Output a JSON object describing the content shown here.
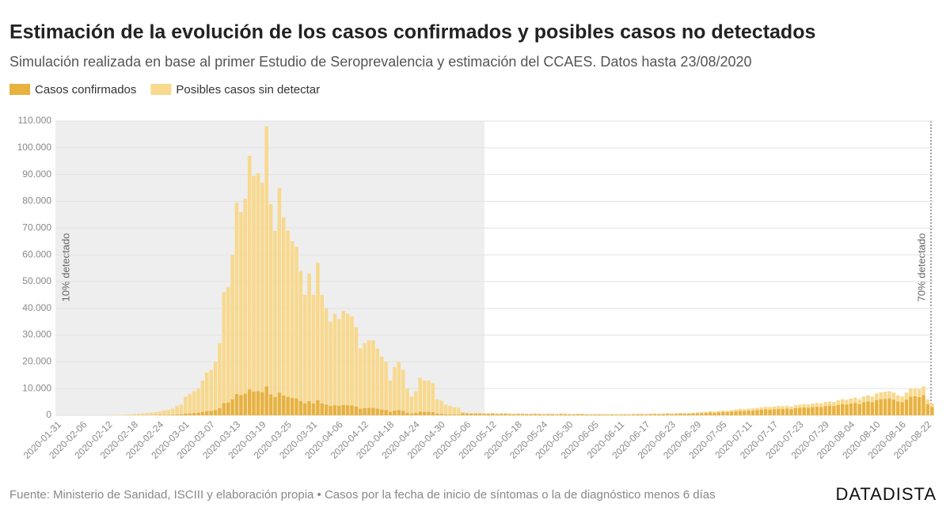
{
  "chart_data": {
    "type": "stacked-bar",
    "title": "Estimación de la evolución de los casos confirmados y posibles casos no detectados",
    "subtitle": "Simulación realizada en base al primer Estudio de Seroprevalencia y estimación del CCAES. Datos hasta 23/08/2020",
    "source": "Fuente: Ministerio de Sanidad, ISCIII y elaboración propia • Casos por la fecha de inicio de síntomas o la de diagnóstico menos 6 días",
    "brand": "DATADISTA",
    "annotations": [
      "10% detectado",
      "70% detectado"
    ],
    "ylim": [
      0,
      110000
    ],
    "yticks": [
      0,
      {
        "value": 10000,
        "label": "10.000"
      },
      {
        "value": 20000,
        "label": "20.000"
      },
      {
        "value": 30000,
        "label": "30.000"
      },
      {
        "value": 40000,
        "label": "40.000"
      },
      {
        "value": 50000,
        "label": "50.000"
      },
      {
        "value": 60000,
        "label": "60.000"
      },
      {
        "value": 70000,
        "label": "70.000"
      },
      {
        "value": 80000,
        "label": "80.000"
      },
      {
        "value": 90000,
        "label": "90.000"
      },
      {
        "value": 100000,
        "label": "100.000"
      },
      {
        "value": 110000,
        "label": "110.000"
      }
    ],
    "grid": true,
    "categories": [
      "2020-01-31",
      null,
      null,
      null,
      null,
      null,
      "2020-02-06",
      null,
      null,
      null,
      null,
      null,
      "2020-02-12",
      null,
      null,
      null,
      null,
      null,
      "2020-02-18",
      null,
      null,
      null,
      null,
      null,
      "2020-02-24",
      null,
      null,
      null,
      null,
      null,
      "2020-03-01",
      null,
      null,
      null,
      null,
      null,
      "2020-03-07",
      null,
      null,
      null,
      null,
      null,
      "2020-03-13",
      null,
      null,
      null,
      null,
      null,
      "2020-03-19",
      null,
      null,
      null,
      null,
      null,
      "2020-03-25",
      null,
      null,
      null,
      null,
      null,
      "2020-03-31",
      null,
      null,
      null,
      null,
      null,
      "2020-04-06",
      null,
      null,
      null,
      null,
      null,
      "2020-04-12",
      null,
      null,
      null,
      null,
      null,
      "2020-04-18",
      null,
      null,
      null,
      null,
      null,
      "2020-04-24",
      null,
      null,
      null,
      null,
      null,
      "2020-04-30",
      null,
      null,
      null,
      null,
      null,
      "2020-05-06",
      null,
      null,
      null,
      null,
      null,
      "2020-05-12",
      null,
      null,
      null,
      null,
      null,
      "2020-05-18",
      null,
      null,
      null,
      null,
      null,
      "2020-05-24",
      null,
      null,
      null,
      null,
      null,
      "2020-05-30",
      null,
      null,
      null,
      null,
      null,
      "2020-06-05",
      null,
      null,
      null,
      null,
      null,
      "2020-06-11",
      null,
      null,
      null,
      null,
      null,
      "2020-06-17",
      null,
      null,
      null,
      null,
      null,
      "2020-06-23",
      null,
      null,
      null,
      null,
      null,
      "2020-06-29",
      null,
      null,
      null,
      null,
      null,
      "2020-07-05",
      null,
      null,
      null,
      null,
      null,
      "2020-07-11",
      null,
      null,
      null,
      null,
      null,
      "2020-07-17",
      null,
      null,
      null,
      null,
      null,
      "2020-07-23",
      null,
      null,
      null,
      null,
      null,
      "2020-07-29",
      null,
      null,
      null,
      null,
      null,
      "2020-08-04",
      null,
      null,
      null,
      null,
      null,
      "2020-08-10",
      null,
      null,
      null,
      null,
      null,
      "2020-08-16",
      null,
      null,
      null,
      null,
      null,
      "2020-08-22",
      null
    ],
    "series": [
      {
        "name": "Casos confirmados",
        "color": "#e8b23f",
        "values": [
          0,
          0,
          0,
          0,
          0,
          0,
          0,
          0,
          0,
          0,
          0,
          0,
          10,
          10,
          20,
          20,
          30,
          40,
          50,
          60,
          70,
          90,
          100,
          120,
          150,
          180,
          200,
          250,
          350,
          400,
          700,
          800,
          900,
          1000,
          1300,
          1600,
          1700,
          2000,
          2700,
          4600,
          4800,
          6000,
          7950,
          7600,
          8100,
          9700,
          8950,
          9050,
          8700,
          10800,
          7900,
          6900,
          8500,
          7400,
          6900,
          6500,
          6300,
          5400,
          4500,
          5300,
          4500,
          5700,
          4500,
          4000,
          3500,
          3800,
          3600,
          3900,
          3800,
          3700,
          3300,
          2500,
          2700,
          2800,
          2800,
          2500,
          2200,
          2000,
          1300,
          1800,
          2000,
          1700,
          1000,
          700,
          900,
          1400,
          1300,
          1300,
          1200,
          600,
          550,
          400,
          350,
          300,
          280,
          840,
          700,
          630,
          630,
          630,
          560,
          560,
          630,
          490,
          560,
          560,
          490,
          420,
          490,
          490,
          420,
          420,
          490,
          420,
          350,
          420,
          420,
          350,
          490,
          420,
          350,
          350,
          420,
          420,
          350,
          280,
          350,
          350,
          280,
          280,
          350,
          280,
          280,
          350,
          280,
          350,
          420,
          420,
          350,
          420,
          490,
          420,
          490,
          560,
          490,
          560,
          630,
          560,
          630,
          700,
          770,
          840,
          910,
          1050,
          980,
          1120,
          1260,
          1190,
          1400,
          1540,
          1680,
          1610,
          1750,
          1820,
          1960,
          2100,
          2240,
          2170,
          2310,
          2450,
          2380,
          2520,
          2310,
          2660,
          2800,
          2940,
          2870,
          3080,
          3220,
          3150,
          3500,
          3640,
          3500,
          3920,
          4200,
          4060,
          4410,
          4620,
          4200,
          4900,
          5250,
          4900,
          5740,
          6020,
          6160,
          6300,
          5950,
          5250,
          4900,
          5950,
          7000,
          7140,
          6860,
          7560,
          4200,
          3150
        ]
      },
      {
        "name": "Posibles casos sin detectar",
        "color": "#f8d98d",
        "values": [
          0,
          0,
          0,
          0,
          0,
          0,
          0,
          0,
          0,
          0,
          0,
          0,
          90,
          90,
          180,
          180,
          270,
          360,
          450,
          540,
          630,
          810,
          900,
          1080,
          1350,
          1620,
          1800,
          2250,
          3150,
          3600,
          6300,
          7200,
          8100,
          9000,
          11700,
          14400,
          15300,
          18000,
          24300,
          41400,
          43200,
          54000,
          71550,
          68400,
          72900,
          87300,
          80550,
          81450,
          78300,
          97200,
          71100,
          62100,
          76500,
          66600,
          62100,
          58500,
          56700,
          48600,
          40500,
          47700,
          40500,
          51300,
          40500,
          36000,
          31500,
          34200,
          32400,
          35100,
          34200,
          33300,
          29700,
          22500,
          24300,
          25200,
          25200,
          22500,
          19800,
          18000,
          11700,
          16200,
          18000,
          15300,
          9000,
          6300,
          8100,
          12600,
          11700,
          11700,
          10800,
          5400,
          4950,
          3600,
          3150,
          2700,
          2520,
          360,
          300,
          270,
          270,
          270,
          240,
          240,
          270,
          210,
          240,
          240,
          210,
          180,
          210,
          210,
          180,
          180,
          210,
          180,
          150,
          180,
          180,
          150,
          210,
          180,
          150,
          150,
          180,
          180,
          150,
          120,
          150,
          150,
          120,
          120,
          150,
          120,
          120,
          150,
          120,
          150,
          180,
          180,
          150,
          180,
          210,
          180,
          210,
          240,
          210,
          240,
          270,
          240,
          270,
          300,
          330,
          360,
          390,
          450,
          420,
          480,
          540,
          510,
          600,
          660,
          720,
          690,
          750,
          780,
          840,
          900,
          960,
          930,
          990,
          1050,
          1020,
          1080,
          990,
          1140,
          1200,
          1260,
          1230,
          1320,
          1380,
          1350,
          1500,
          1560,
          1500,
          1680,
          1800,
          1740,
          1890,
          1980,
          1800,
          2100,
          2250,
          2100,
          2460,
          2580,
          2640,
          2700,
          2550,
          2250,
          2100,
          2550,
          3000,
          3060,
          2940,
          3240,
          1800,
          1350
        ]
      }
    ]
  }
}
